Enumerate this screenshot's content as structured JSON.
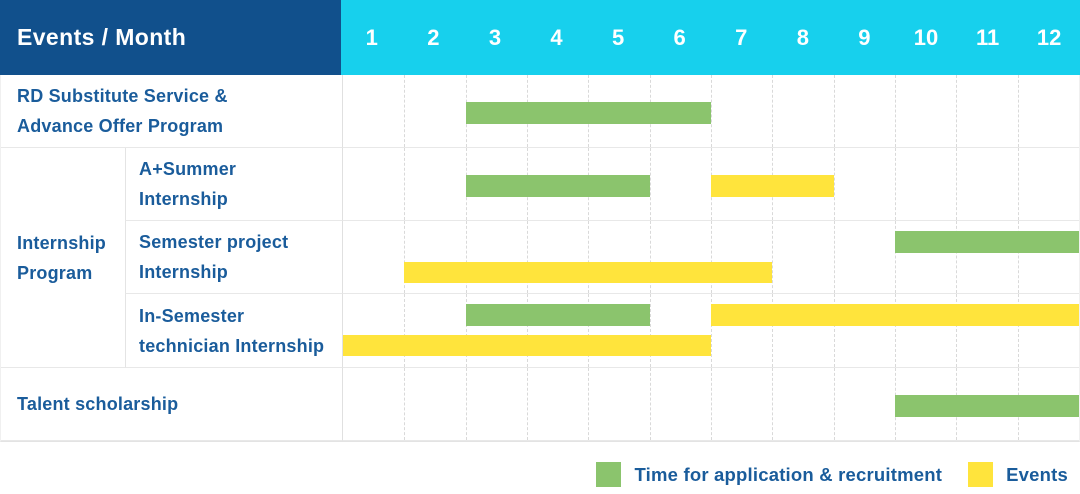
{
  "chart_data": {
    "type": "bar",
    "layout": "gantt-table",
    "corner_label": "Events / Month",
    "x_axis": {
      "label": "Month",
      "ticks": [
        "1",
        "2",
        "3",
        "4",
        "5",
        "6",
        "7",
        "8",
        "9",
        "10",
        "11",
        "12"
      ],
      "range": [
        1,
        12
      ],
      "gridlines": "dashed-vertical"
    },
    "groups": [
      {
        "label": "Internship Program",
        "row_indexes": [
          1,
          2,
          3
        ]
      }
    ],
    "rows": [
      {
        "label": "RD Substitute Service &\nAdvance Offer Program",
        "bars": [
          {
            "series": "application",
            "start_month": 3,
            "end_month": 6,
            "lane": "single"
          }
        ]
      },
      {
        "label": "A+Summer\nInternship",
        "bars": [
          {
            "series": "application",
            "start_month": 3,
            "end_month": 5,
            "lane": "single"
          },
          {
            "series": "events",
            "start_month": 7,
            "end_month": 8,
            "lane": "single"
          }
        ]
      },
      {
        "label": "Semester project\nInternship",
        "bars": [
          {
            "series": "application",
            "start_month": 10,
            "end_month": 12,
            "lane": "top"
          },
          {
            "series": "events",
            "start_month": 2,
            "end_month": 7,
            "lane": "bottom"
          }
        ]
      },
      {
        "label": "In-Semester\ntechnician Internship",
        "bars": [
          {
            "series": "application",
            "start_month": 3,
            "end_month": 5,
            "lane": "top"
          },
          {
            "series": "events",
            "start_month": 7,
            "end_month": 12,
            "lane": "top"
          },
          {
            "series": "events",
            "start_month": 1,
            "end_month": 6,
            "lane": "bottom"
          }
        ]
      },
      {
        "label": "Talent scholarship",
        "bars": [
          {
            "series": "application",
            "start_month": 10,
            "end_month": 12,
            "lane": "single"
          }
        ]
      }
    ],
    "legend": [
      {
        "series": "application",
        "label": "Time for application & recruitment",
        "color": "#8BC46D"
      },
      {
        "series": "events",
        "label": "Events",
        "color": "#FFE43C"
      }
    ],
    "colors": {
      "header_left_bg": "#11508C",
      "header_months_bg": "#17D0ED",
      "header_text": "#FFFFFF",
      "row_label_text": "#1A5C9B",
      "application_bar": "#8BC46D",
      "events_bar": "#FFE43C",
      "grid_dash": "#D9D9D9",
      "row_border": "#E8E8E8"
    }
  }
}
